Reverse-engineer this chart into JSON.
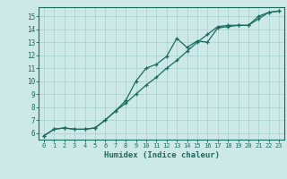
{
  "xlabel": "Humidex (Indice chaleur)",
  "bg_color": "#cce9e7",
  "grid_color": "#aad4d0",
  "line_color": "#1a6b5e",
  "spine_color": "#1a6b5e",
  "xlim": [
    -0.5,
    23.5
  ],
  "ylim": [
    5.5,
    15.7
  ],
  "xticks": [
    0,
    1,
    2,
    3,
    4,
    5,
    6,
    7,
    8,
    9,
    10,
    11,
    12,
    13,
    14,
    15,
    16,
    17,
    18,
    19,
    20,
    21,
    22,
    23
  ],
  "yticks": [
    6,
    7,
    8,
    9,
    10,
    11,
    12,
    13,
    14,
    15
  ],
  "line1_x": [
    0,
    1,
    2,
    3,
    4,
    5,
    6,
    7,
    8,
    9,
    10,
    11,
    12,
    13,
    14,
    15,
    16,
    17,
    18,
    19,
    20,
    21,
    22,
    23
  ],
  "line1_y": [
    5.8,
    6.3,
    6.4,
    6.3,
    6.3,
    6.4,
    7.0,
    7.7,
    8.3,
    9.0,
    9.7,
    10.3,
    11.0,
    11.6,
    12.3,
    13.0,
    13.6,
    14.2,
    14.3,
    14.3,
    14.3,
    15.0,
    15.3,
    15.4
  ],
  "line2_x": [
    0,
    1,
    2,
    3,
    4,
    5,
    6,
    7,
    8,
    9,
    10,
    11,
    12,
    13,
    14,
    15,
    16,
    17,
    18,
    19,
    20,
    21,
    22,
    23
  ],
  "line2_y": [
    5.8,
    6.3,
    6.4,
    6.3,
    6.3,
    6.4,
    7.0,
    7.7,
    8.5,
    10.0,
    11.0,
    11.3,
    11.9,
    13.3,
    12.6,
    13.1,
    13.0,
    14.1,
    14.2,
    14.3,
    14.3,
    14.8,
    15.3,
    15.4
  ]
}
